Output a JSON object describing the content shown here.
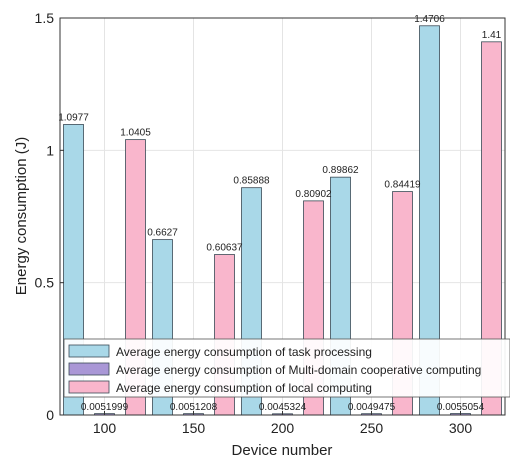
{
  "chart_data": {
    "type": "bar",
    "xlabel": "Device number",
    "ylabel": "Energy consumption (J)",
    "ylim": [
      0,
      1.5
    ],
    "yticks": [
      0,
      0.5,
      1,
      1.5
    ],
    "ytick_labels": [
      "0",
      "0.5",
      "1",
      "1.5"
    ],
    "categories": [
      "100",
      "150",
      "200",
      "250",
      "300"
    ],
    "grid": true,
    "legend_position": "bottom-left",
    "series": [
      {
        "name": "Average energy consumption of task processing",
        "color": "#a9d8e8",
        "values": [
          1.0977,
          0.6627,
          0.85888,
          0.89862,
          1.4706
        ],
        "labels": [
          "1.0977",
          "0.6627",
          "0.85888",
          "0.89862",
          "1.4706"
        ]
      },
      {
        "name": "Average energy consumption of Multi-domain cooperative computing",
        "color": "#a997d6",
        "values": [
          0.0051999,
          0.0051208,
          0.0045324,
          0.0049475,
          0.0055054
        ],
        "labels": [
          "0.0051999",
          "0.0051208",
          "0.0045324",
          "0.0049475",
          "0.0055054"
        ]
      },
      {
        "name": "Average energy consumption of local computing",
        "color": "#f9b6cc",
        "values": [
          1.0405,
          0.60637,
          0.80902,
          0.84419,
          1.41
        ],
        "labels": [
          "1.0405",
          "0.60637",
          "0.80902",
          "0.84419",
          "1.41"
        ]
      }
    ]
  }
}
